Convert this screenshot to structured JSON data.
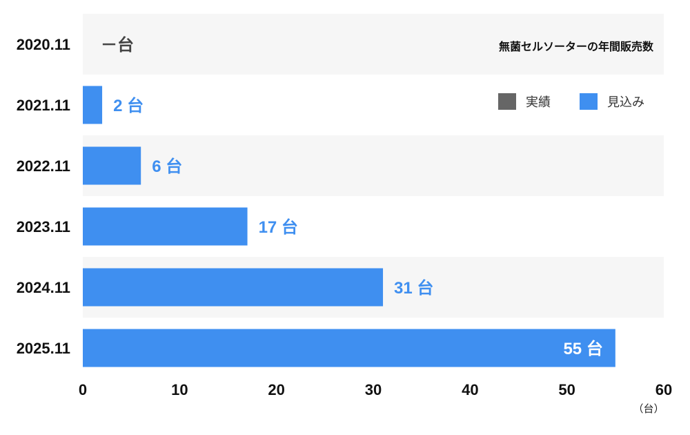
{
  "chart_data": {
    "type": "bar",
    "orientation": "horizontal",
    "title": "無菌セルソーターの年間販売数",
    "categories": [
      "2020.11",
      "2021.11",
      "2022.11",
      "2023.11",
      "2024.11",
      "2025.11"
    ],
    "series": [
      {
        "name": "見込み",
        "values": [
          null,
          2,
          6,
          17,
          31,
          55
        ]
      }
    ],
    "value_labels": [
      "－台",
      "2 台",
      "6 台",
      "17 台",
      "31 台",
      "55 台"
    ],
    "legend": [
      {
        "label": "実績",
        "color": "#666666"
      },
      {
        "label": "見込み",
        "color": "#3f8ff0"
      }
    ],
    "xlim": [
      0,
      60
    ],
    "xticks": [
      "0",
      "10",
      "20",
      "30",
      "40",
      "50",
      "60"
    ],
    "unit_label": "（台）",
    "legend_position": "top-right",
    "grid": false
  },
  "colors": {
    "forecast": "#3f8ff0",
    "actual": "#666666",
    "band": "#f6f6f6",
    "empty_label": "#444444",
    "inside_label": "#ffffff"
  }
}
